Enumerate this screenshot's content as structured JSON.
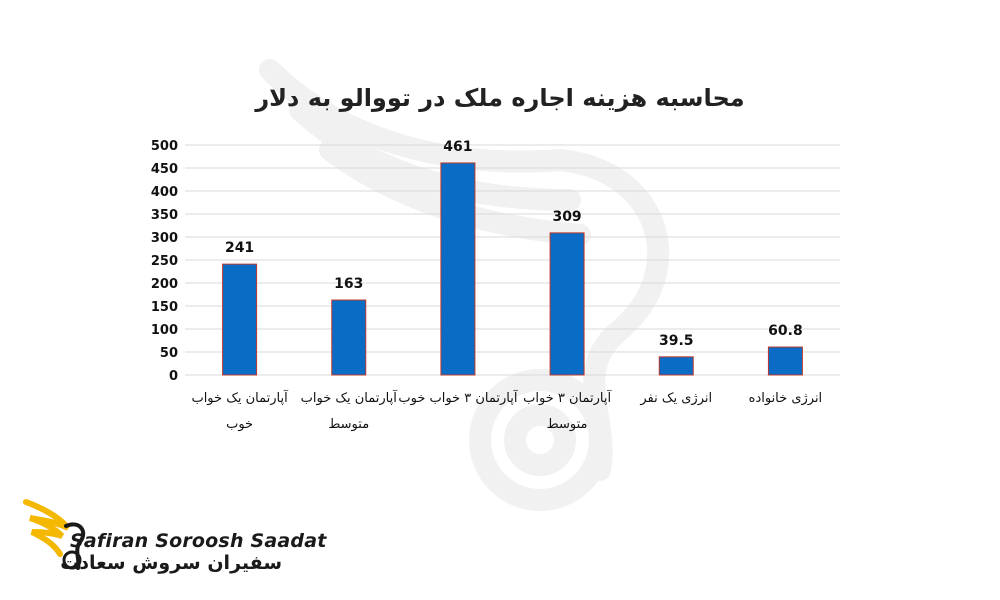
{
  "chart_data": {
    "type": "bar",
    "title": "محاسبه هزینه اجاره ملک در تووالو به دلار",
    "categories": [
      "آپارتمان یک خواب خوب",
      "آپارتمان یک خواب متوسط",
      "آپارتمان ۳ خواب خوب",
      "آپارتمان ۳ خواب متوسط",
      "انرژی یک نفر",
      "انرژی خانواده"
    ],
    "values": [
      241,
      163,
      461,
      309,
      39.5,
      60.8
    ],
    "data_labels": [
      "241",
      "163",
      "461",
      "309",
      "39.5",
      "60.8"
    ],
    "ylim": [
      0,
      500
    ],
    "yticks": [
      0,
      50,
      100,
      150,
      200,
      250,
      300,
      350,
      400,
      450,
      500
    ],
    "grid": true,
    "bar_color": "#0a6cc4",
    "bar_edge_color": "#c0392b"
  },
  "logo": {
    "text_en": "Safiran Soroosh Saadat",
    "text_fa": "سفیران سروش سعادت",
    "accent": "#f5b800"
  }
}
